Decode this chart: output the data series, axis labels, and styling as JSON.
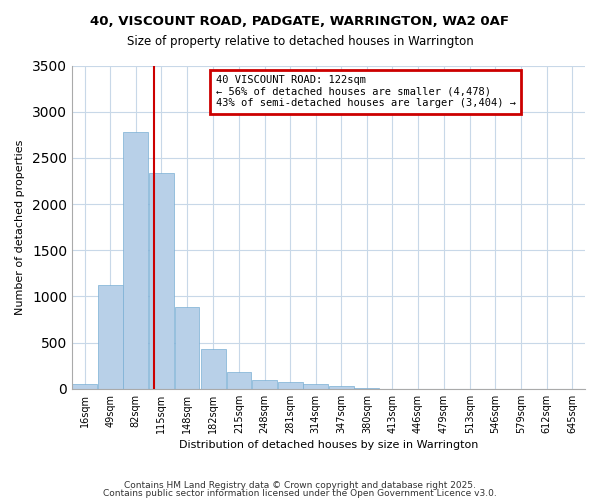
{
  "title": "40, VISCOUNT ROAD, PADGATE, WARRINGTON, WA2 0AF",
  "subtitle": "Size of property relative to detached houses in Warrington",
  "xlabel": "Distribution of detached houses by size in Warrington",
  "ylabel": "Number of detached properties",
  "bar_color": "#b8d0e8",
  "bar_edgecolor": "#7aafd4",
  "background_color": "#ffffff",
  "grid_color": "#c8d8e8",
  "vline_x": 122,
  "vline_color": "#cc0000",
  "annotation_title": "40 VISCOUNT ROAD: 122sqm",
  "annotation_line1": "← 56% of detached houses are smaller (4,478)",
  "annotation_line2": "43% of semi-detached houses are larger (3,404) →",
  "annotation_box_color": "#cc0000",
  "bin_edges": [
    16,
    49,
    82,
    115,
    148,
    182,
    215,
    248,
    281,
    314,
    347,
    380,
    413,
    446,
    479,
    513,
    546,
    579,
    612,
    645,
    678
  ],
  "bin_counts": [
    50,
    1125,
    2775,
    2340,
    890,
    430,
    185,
    100,
    75,
    50,
    30,
    5,
    2,
    1,
    0,
    0,
    0,
    0,
    0,
    0
  ],
  "ylim": [
    0,
    3500
  ],
  "xlim": [
    16,
    678
  ],
  "yticks": [
    0,
    500,
    1000,
    1500,
    2000,
    2500,
    3000,
    3500
  ],
  "footer1": "Contains HM Land Registry data © Crown copyright and database right 2025.",
  "footer2": "Contains public sector information licensed under the Open Government Licence v3.0."
}
